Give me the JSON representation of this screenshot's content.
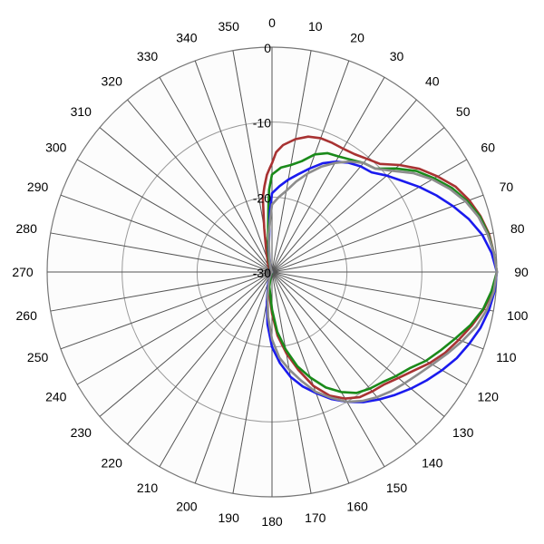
{
  "chart_data": {
    "type": "line",
    "subtype": "polar",
    "title": "",
    "angle_unit": "degrees",
    "angle_direction": "clockwise",
    "angle_zero": "top",
    "angle_ticks": [
      0,
      10,
      20,
      30,
      40,
      50,
      60,
      70,
      80,
      90,
      100,
      110,
      120,
      130,
      140,
      150,
      160,
      170,
      180,
      190,
      200,
      210,
      220,
      230,
      240,
      250,
      260,
      270,
      280,
      290,
      300,
      310,
      320,
      330,
      340,
      350
    ],
    "radial_range": [
      -30,
      0
    ],
    "radial_ticks": [
      0,
      -10,
      -20,
      -30
    ],
    "grid": true,
    "legend": "none",
    "series": [
      {
        "color": "#a83232",
        "points": [
          [
            0,
            -15.5
          ],
          [
            2,
            -14.0
          ],
          [
            5,
            -13.0
          ],
          [
            10,
            -12.0
          ],
          [
            15,
            -11.3
          ],
          [
            20,
            -11.0
          ],
          [
            25,
            -11.0
          ],
          [
            30,
            -11.0
          ],
          [
            35,
            -10.8
          ],
          [
            40,
            -10.3
          ],
          [
            45,
            -9.6
          ],
          [
            50,
            -7.8
          ],
          [
            55,
            -6.0
          ],
          [
            60,
            -4.5
          ],
          [
            65,
            -3.0
          ],
          [
            70,
            -2.0
          ],
          [
            75,
            -1.2
          ],
          [
            80,
            -0.6
          ],
          [
            85,
            -0.3
          ],
          [
            90,
            0.0
          ],
          [
            95,
            -0.5
          ],
          [
            100,
            -1.3
          ],
          [
            105,
            -2.4
          ],
          [
            110,
            -3.5
          ],
          [
            115,
            -4.5
          ],
          [
            120,
            -5.7
          ],
          [
            125,
            -7.0
          ],
          [
            130,
            -8.0
          ],
          [
            135,
            -8.8
          ],
          [
            140,
            -9.2
          ],
          [
            145,
            -9.6
          ],
          [
            150,
            -10.5
          ],
          [
            155,
            -11.8
          ],
          [
            160,
            -13.8
          ],
          [
            165,
            -16.5
          ],
          [
            170,
            -19.0
          ],
          [
            175,
            -21.5
          ],
          [
            180,
            -24.5
          ],
          [
            190,
            -27.5
          ],
          [
            200,
            -29.0
          ],
          [
            220,
            -29.8
          ],
          [
            250,
            -30.0
          ],
          [
            270,
            -30.0
          ],
          [
            300,
            -29.8
          ],
          [
            330,
            -29.0
          ],
          [
            345,
            -27.0
          ],
          [
            350,
            -24.0
          ],
          [
            353,
            -20.0
          ],
          [
            355,
            -18.5
          ],
          [
            357,
            -17.0
          ],
          [
            359,
            -16.0
          ],
          [
            360,
            -15.5
          ]
        ]
      },
      {
        "color": "#1a8a1a",
        "points": [
          [
            0,
            -17.0
          ],
          [
            5,
            -16.0
          ],
          [
            10,
            -15.5
          ],
          [
            15,
            -14.7
          ],
          [
            20,
            -13.3
          ],
          [
            25,
            -12.5
          ],
          [
            30,
            -12.2
          ],
          [
            35,
            -11.7
          ],
          [
            40,
            -11.0
          ],
          [
            45,
            -10.5
          ],
          [
            50,
            -8.5
          ],
          [
            55,
            -6.5
          ],
          [
            60,
            -5.0
          ],
          [
            65,
            -3.5
          ],
          [
            70,
            -2.3
          ],
          [
            75,
            -1.3
          ],
          [
            80,
            -0.7
          ],
          [
            85,
            -0.3
          ],
          [
            90,
            0.0
          ],
          [
            95,
            -0.6
          ],
          [
            100,
            -1.4
          ],
          [
            105,
            -2.6
          ],
          [
            110,
            -4.0
          ],
          [
            115,
            -5.2
          ],
          [
            120,
            -6.3
          ],
          [
            125,
            -7.6
          ],
          [
            130,
            -8.4
          ],
          [
            135,
            -9.2
          ],
          [
            140,
            -9.7
          ],
          [
            145,
            -10.3
          ],
          [
            150,
            -11.5
          ],
          [
            155,
            -13.0
          ],
          [
            160,
            -15.0
          ],
          [
            165,
            -17.0
          ],
          [
            170,
            -19.5
          ],
          [
            175,
            -22.0
          ],
          [
            180,
            -25.0
          ],
          [
            190,
            -28.0
          ],
          [
            200,
            -29.5
          ],
          [
            220,
            -30.0
          ],
          [
            250,
            -30.0
          ],
          [
            300,
            -30.0
          ],
          [
            330,
            -29.6
          ],
          [
            345,
            -28.5
          ],
          [
            350,
            -27.0
          ],
          [
            355,
            -24.0
          ],
          [
            357,
            -21.0
          ],
          [
            358,
            -19.0
          ],
          [
            360,
            -17.0
          ]
        ]
      },
      {
        "color": "#1a1aee",
        "points": [
          [
            0,
            -19.5
          ],
          [
            5,
            -18.5
          ],
          [
            10,
            -17.5
          ],
          [
            15,
            -16.5
          ],
          [
            20,
            -15.3
          ],
          [
            25,
            -14.0
          ],
          [
            30,
            -13.0
          ],
          [
            35,
            -12.2
          ],
          [
            40,
            -11.6
          ],
          [
            45,
            -11.2
          ],
          [
            50,
            -10.0
          ],
          [
            55,
            -8.8
          ],
          [
            60,
            -7.3
          ],
          [
            65,
            -5.8
          ],
          [
            70,
            -4.3
          ],
          [
            75,
            -2.8
          ],
          [
            80,
            -1.5
          ],
          [
            85,
            -0.6
          ],
          [
            90,
            0.0
          ],
          [
            95,
            -0.2
          ],
          [
            100,
            -0.6
          ],
          [
            105,
            -1.2
          ],
          [
            110,
            -2.0
          ],
          [
            115,
            -2.8
          ],
          [
            120,
            -3.8
          ],
          [
            125,
            -4.8
          ],
          [
            130,
            -5.8
          ],
          [
            135,
            -6.8
          ],
          [
            140,
            -7.8
          ],
          [
            145,
            -8.8
          ],
          [
            150,
            -10.0
          ],
          [
            155,
            -11.3
          ],
          [
            160,
            -12.8
          ],
          [
            165,
            -14.2
          ],
          [
            170,
            -15.8
          ],
          [
            175,
            -17.8
          ],
          [
            180,
            -20.0
          ],
          [
            185,
            -23.0
          ],
          [
            190,
            -26.0
          ],
          [
            200,
            -28.5
          ],
          [
            220,
            -29.8
          ],
          [
            250,
            -30.0
          ],
          [
            300,
            -30.0
          ],
          [
            330,
            -29.7
          ],
          [
            345,
            -29.0
          ],
          [
            352,
            -27.0
          ],
          [
            355,
            -25.5
          ],
          [
            358,
            -22.0
          ],
          [
            360,
            -19.5
          ]
        ]
      },
      {
        "color": "#8c8c8c",
        "points": [
          [
            0,
            -21.0
          ],
          [
            5,
            -20.0
          ],
          [
            10,
            -19.0
          ],
          [
            15,
            -17.5
          ],
          [
            20,
            -16.0
          ],
          [
            25,
            -14.5
          ],
          [
            30,
            -13.2
          ],
          [
            35,
            -12.0
          ],
          [
            40,
            -11.0
          ],
          [
            45,
            -10.5
          ],
          [
            50,
            -9.0
          ],
          [
            55,
            -7.0
          ],
          [
            60,
            -5.3
          ],
          [
            65,
            -3.8
          ],
          [
            70,
            -2.5
          ],
          [
            75,
            -1.5
          ],
          [
            80,
            -0.8
          ],
          [
            85,
            -0.3
          ],
          [
            90,
            0.0
          ],
          [
            95,
            -0.3
          ],
          [
            100,
            -0.9
          ],
          [
            105,
            -1.8
          ],
          [
            110,
            -3.0
          ],
          [
            115,
            -4.2
          ],
          [
            120,
            -5.3
          ],
          [
            125,
            -6.2
          ],
          [
            130,
            -6.9
          ],
          [
            135,
            -7.5
          ],
          [
            140,
            -8.2
          ],
          [
            145,
            -9.0
          ],
          [
            150,
            -10.0
          ],
          [
            155,
            -11.5
          ],
          [
            160,
            -13.0
          ],
          [
            165,
            -15.0
          ],
          [
            170,
            -16.8
          ],
          [
            175,
            -18.5
          ],
          [
            180,
            -21.0
          ],
          [
            185,
            -24.0
          ],
          [
            190,
            -26.5
          ],
          [
            200,
            -28.8
          ],
          [
            220,
            -29.8
          ],
          [
            250,
            -30.0
          ],
          [
            300,
            -30.0
          ],
          [
            330,
            -29.8
          ],
          [
            345,
            -29.0
          ],
          [
            350,
            -28.0
          ],
          [
            355,
            -25.0
          ],
          [
            358,
            -23.0
          ],
          [
            360,
            -21.0
          ]
        ]
      }
    ]
  }
}
